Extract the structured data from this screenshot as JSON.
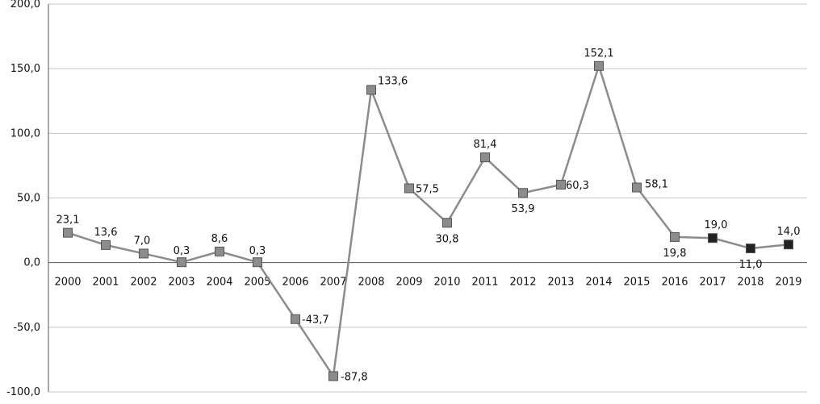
{
  "chart_data": {
    "type": "line",
    "categories": [
      "2000",
      "2001",
      "2002",
      "2003",
      "2004",
      "2005",
      "2006",
      "2007",
      "2008",
      "2009",
      "2010",
      "2011",
      "2012",
      "2013",
      "2014",
      "2015",
      "2016",
      "2017",
      "2018",
      "2019"
    ],
    "values": [
      23.1,
      13.6,
      7.0,
      0.3,
      8.6,
      0.3,
      -43.7,
      -87.8,
      133.6,
      57.5,
      30.8,
      81.4,
      53.9,
      60.3,
      152.1,
      58.1,
      19.8,
      19.0,
      11.0,
      14.0
    ],
    "labels": [
      "23,1",
      "13,6",
      "7,0",
      "0,3",
      "8,6",
      "0,3",
      "-43,7",
      "-87,8",
      "133,6",
      "57,5",
      "30,8",
      "81,4",
      "53,9",
      "60,3",
      "152,1",
      "58,1",
      "19,8",
      "19,0",
      "11,0",
      "14,0"
    ],
    "ylim": [
      -100,
      200
    ],
    "yticks": [
      -100,
      -50,
      0,
      50,
      100,
      150,
      200
    ],
    "ytick_labels": [
      "-100,0",
      "-50,0",
      "0,0",
      "50,0",
      "100,0",
      "150,0",
      "200,0"
    ],
    "grid": true,
    "legend": "none",
    "title": "",
    "xlabel": "",
    "ylabel": ""
  },
  "colors": {
    "line": "#8c8c8c",
    "marker": "#8c8c8c",
    "marker_highlight": "#222222",
    "grid": "#c8c8c8",
    "axis": "#555555"
  },
  "highlight_from_index": 17
}
